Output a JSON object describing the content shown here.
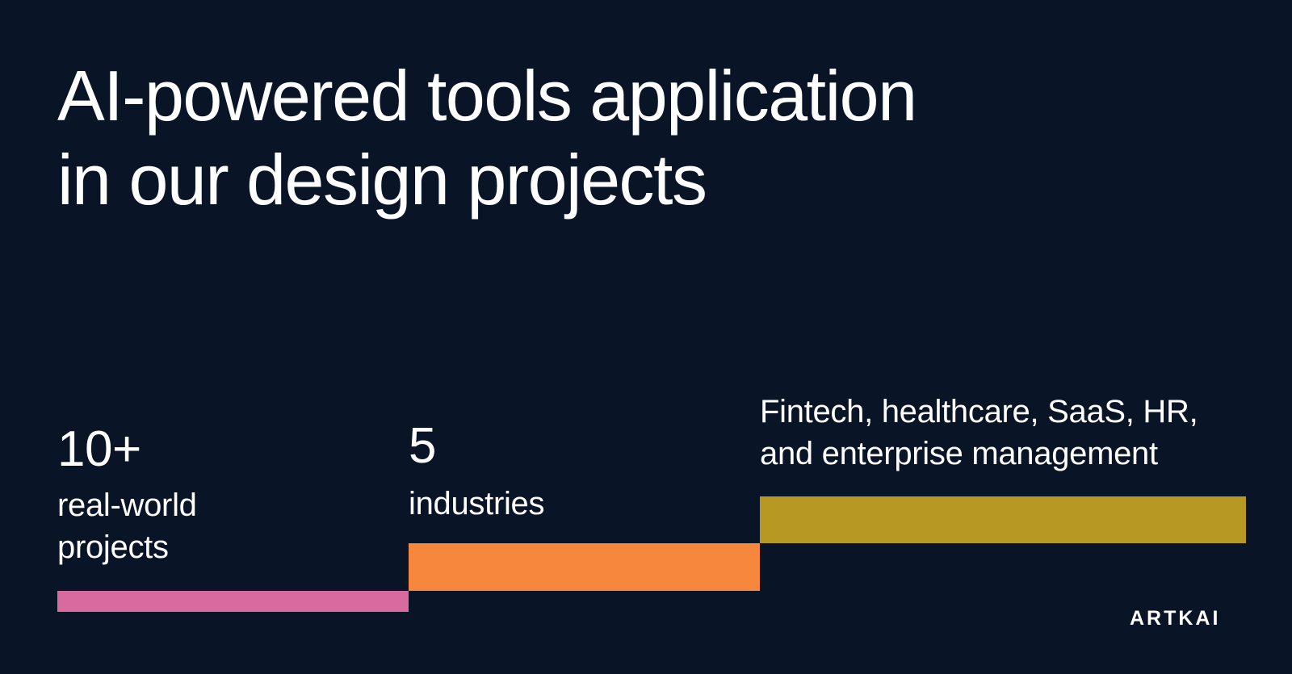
{
  "slide": {
    "title_line1": "AI-powered tools application",
    "title_line2": "in our design projects",
    "brand": "ARTKAI"
  },
  "stats": [
    {
      "value": "10+",
      "label_lines": [
        "real-world",
        "projects"
      ],
      "bar_color": "#D96A9F"
    },
    {
      "value": "5",
      "label_lines": [
        "industries"
      ],
      "bar_color": "#F6873C"
    },
    {
      "value": "",
      "label_lines": [
        "Fintech, healthcare, SaaS, HR,",
        "and enterprise management"
      ],
      "bar_color": "#B79823"
    }
  ],
  "colors": {
    "background": "#091427",
    "text": "#FFFFFF",
    "pink": "#D96A9F",
    "orange": "#F6873C",
    "gold": "#B79823"
  },
  "chart_data": {
    "type": "bar",
    "title": "AI-powered tools application in our design projects",
    "categories": [
      "real-world projects",
      "industries",
      "Fintech, healthcare, SaaS, HR, and enterprise management"
    ],
    "values": [
      10,
      5,
      null
    ],
    "value_labels": [
      "10+",
      "5",
      ""
    ],
    "bar_colors": [
      "#D96A9F",
      "#F6873C",
      "#B79823"
    ],
    "layout": "ascending-steps, bars act as stat underlines, no axes, no gridlines, no legend",
    "xlabel": "",
    "ylabel": ""
  }
}
